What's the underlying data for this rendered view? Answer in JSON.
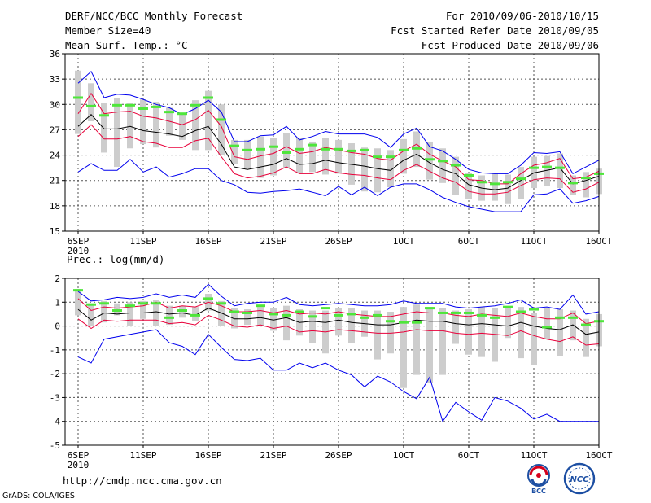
{
  "header": {
    "title": "DERF/NCC/BCC Monthly Forecast",
    "member_size": "Member Size=40",
    "variable": "Mean Surf. Temp.: °C",
    "period": "For 2010/09/06-2010/10/15",
    "refer_date": "Fcst Started Refer Date 2010/09/05",
    "produced_date": "Fcst Produced Date 2010/09/06"
  },
  "footer": {
    "url": "http://cmdp.ncc.cma.gov.cn",
    "grads": "GrADS: COLA/IGES",
    "logo_left_text": "BCC",
    "logo_right_text": "NCC"
  },
  "colors": {
    "envelope": "#0000ee",
    "spread": "#e8003a",
    "mean": "#000000",
    "bar": "#cdcdcd",
    "marker": "#4ee63a",
    "grid": "#555555"
  },
  "chart_data": [
    {
      "type": "line",
      "title": "",
      "ylabel": "Mean Surf. Temp.: °C",
      "ylim": [
        15,
        36
      ],
      "yticks": [
        "15",
        "18",
        "21",
        "24",
        "27",
        "30",
        "33",
        "36"
      ],
      "xticks": [
        {
          "day": 0,
          "label": "6SEP",
          "sublabel": "2010"
        },
        {
          "day": 5,
          "label": "11SEP"
        },
        {
          "day": 10,
          "label": "16SEP"
        },
        {
          "day": 15,
          "label": "21SEP"
        },
        {
          "day": 20,
          "label": "26SEP"
        },
        {
          "day": 25,
          "label": "1OCT"
        },
        {
          "day": 30,
          "label": "6OCT"
        },
        {
          "day": 35,
          "label": "11OCT"
        },
        {
          "day": 40,
          "label": "16OCT"
        }
      ],
      "xlim": [
        -1,
        40
      ],
      "series": [
        {
          "name": "max",
          "values": [
            32.5,
            33.9,
            30.8,
            31.2,
            31.1,
            30.6,
            30.0,
            29.6,
            28.8,
            29.5,
            30.5,
            29.1,
            25.6,
            25.6,
            26.3,
            26.4,
            27.4,
            25.8,
            26.2,
            26.8,
            26.5,
            26.5,
            26.5,
            26.1,
            24.9,
            26.5,
            27.2,
            25.0,
            24.5,
            23.5,
            22.3,
            21.9,
            21.8,
            21.8,
            22.8,
            24.3,
            24.2,
            24.4,
            21.8,
            22.6,
            23.4
          ]
        },
        {
          "name": "upper",
          "values": [
            28.9,
            31.3,
            28.9,
            29.1,
            29.2,
            28.6,
            28.4,
            28.0,
            27.6,
            28.2,
            29.3,
            27.4,
            23.8,
            23.5,
            23.9,
            24.2,
            25.0,
            24.2,
            24.4,
            24.9,
            24.6,
            24.3,
            24.1,
            23.6,
            23.4,
            24.5,
            25.3,
            24.1,
            23.3,
            22.6,
            21.1,
            21.0,
            20.6,
            20.6,
            21.8,
            22.8,
            23.1,
            23.6,
            21.2,
            21.4,
            22.1
          ]
        },
        {
          "name": "mean",
          "values": [
            27.4,
            28.8,
            27.1,
            27.1,
            27.4,
            26.9,
            26.7,
            26.5,
            26.2,
            26.9,
            27.4,
            25.3,
            22.6,
            22.3,
            22.6,
            22.9,
            23.6,
            22.9,
            23.0,
            23.4,
            23.1,
            22.9,
            22.7,
            22.4,
            22.2,
            23.4,
            24.1,
            23.1,
            22.3,
            21.8,
            20.5,
            20.1,
            19.9,
            20.1,
            21.0,
            21.9,
            22.2,
            22.5,
            20.6,
            21.0,
            21.5
          ]
        },
        {
          "name": "lower",
          "values": [
            26.2,
            27.6,
            25.9,
            25.9,
            26.2,
            25.6,
            25.4,
            24.9,
            24.9,
            25.7,
            26.0,
            23.8,
            21.8,
            21.3,
            21.5,
            21.9,
            22.6,
            21.8,
            21.8,
            22.3,
            21.9,
            21.7,
            21.6,
            21.3,
            21.1,
            22.2,
            22.9,
            22.1,
            21.3,
            20.8,
            19.7,
            19.4,
            19.4,
            19.6,
            20.4,
            21.1,
            21.3,
            21.2,
            19.6,
            20.0,
            20.8
          ]
        },
        {
          "name": "min",
          "values": [
            22.0,
            23.0,
            22.2,
            22.2,
            23.5,
            22.0,
            22.6,
            21.4,
            21.8,
            22.4,
            22.4,
            21.0,
            20.5,
            19.6,
            19.5,
            19.7,
            19.8,
            20.0,
            19.6,
            19.2,
            20.3,
            19.3,
            20.2,
            19.2,
            20.2,
            20.6,
            20.6,
            19.9,
            19.0,
            18.4,
            17.9,
            17.6,
            17.3,
            17.3,
            17.3,
            19.3,
            19.4,
            20.0,
            18.3,
            18.6,
            19.1
          ]
        },
        {
          "name": "bars_high",
          "values": [
            34.0,
            32.5,
            30.2,
            30.7,
            30.2,
            30.6,
            30.3,
            29.6,
            28.8,
            30.5,
            31.6,
            30.0,
            25.8,
            25.8,
            26.2,
            26.0,
            26.6,
            26.0,
            25.6,
            26.0,
            25.8,
            25.4,
            24.9,
            24.8,
            24.6,
            25.9,
            26.8,
            25.6,
            24.8,
            23.8,
            21.9,
            21.6,
            21.9,
            21.7,
            22.6,
            23.8,
            23.9,
            24.2,
            21.6,
            22.0,
            22.4
          ]
        },
        {
          "name": "bars_low",
          "values": [
            26.5,
            28.0,
            24.3,
            22.6,
            24.8,
            25.3,
            24.9,
            26.3,
            25.8,
            24.6,
            24.6,
            24.0,
            22.9,
            22.4,
            21.3,
            21.6,
            22.5,
            21.9,
            22.0,
            21.7,
            21.8,
            20.5,
            19.7,
            19.6,
            20.2,
            21.8,
            22.6,
            21.1,
            20.7,
            19.3,
            18.8,
            18.6,
            18.6,
            18.2,
            18.8,
            20.1,
            20.3,
            20.1,
            19.3,
            19.0,
            19.4
          ]
        },
        {
          "name": "markers",
          "values": [
            30.8,
            29.8,
            28.7,
            29.9,
            29.9,
            29.5,
            29.7,
            29.1,
            28.9,
            29.9,
            30.8,
            28.2,
            25.1,
            24.6,
            24.7,
            25.0,
            24.3,
            24.7,
            25.2,
            24.7,
            24.7,
            24.5,
            24.6,
            23.8,
            23.8,
            24.6,
            24.8,
            23.5,
            23.3,
            22.8,
            21.6,
            20.8,
            20.6,
            20.8,
            21.2,
            22.5,
            22.6,
            22.5,
            20.7,
            21.3,
            21.8
          ]
        }
      ]
    },
    {
      "type": "line",
      "title": "",
      "ylabel": "Prec.: log(mm/d)",
      "ylim": [
        -5,
        2
      ],
      "yticks": [
        "-5",
        "-4",
        "-3",
        "-2",
        "-1",
        "0",
        "1",
        "2"
      ],
      "xticks": [
        {
          "day": 0,
          "label": "6SEP",
          "sublabel": "2010"
        },
        {
          "day": 5,
          "label": "11SEP"
        },
        {
          "day": 10,
          "label": "16SEP"
        },
        {
          "day": 15,
          "label": "21SEP"
        },
        {
          "day": 20,
          "label": "26SEP"
        },
        {
          "day": 25,
          "label": "1OCT"
        },
        {
          "day": 30,
          "label": "6OCT"
        },
        {
          "day": 35,
          "label": "11OCT"
        },
        {
          "day": 40,
          "label": "16OCT"
        }
      ],
      "xlim": [
        -1,
        40
      ],
      "series": [
        {
          "name": "max",
          "values": [
            1.45,
            1.05,
            1.1,
            1.2,
            1.15,
            1.2,
            1.35,
            1.2,
            1.3,
            1.2,
            1.75,
            1.25,
            0.85,
            0.95,
            1.0,
            1.0,
            1.2,
            0.9,
            0.85,
            0.9,
            0.95,
            0.9,
            0.85,
            0.85,
            0.9,
            1.05,
            0.95,
            0.95,
            0.95,
            0.8,
            0.75,
            0.8,
            0.85,
            0.95,
            1.1,
            0.75,
            0.8,
            0.7,
            1.3,
            0.5,
            0.6
          ]
        },
        {
          "name": "upper",
          "values": [
            1.15,
            0.65,
            0.8,
            0.75,
            0.8,
            0.85,
            1.0,
            0.75,
            0.85,
            0.8,
            1.0,
            0.85,
            0.6,
            0.6,
            0.65,
            0.55,
            0.65,
            0.5,
            0.55,
            0.5,
            0.6,
            0.5,
            0.45,
            0.4,
            0.4,
            0.5,
            0.6,
            0.55,
            0.55,
            0.45,
            0.4,
            0.5,
            0.45,
            0.4,
            0.55,
            0.4,
            0.3,
            0.3,
            0.55,
            0.1,
            0.2
          ]
        },
        {
          "name": "mean",
          "values": [
            0.7,
            0.25,
            0.55,
            0.5,
            0.55,
            0.55,
            0.6,
            0.5,
            0.55,
            0.45,
            0.75,
            0.55,
            0.3,
            0.3,
            0.35,
            0.25,
            0.35,
            0.15,
            0.2,
            0.15,
            0.25,
            0.15,
            0.1,
            0.05,
            0.05,
            0.15,
            0.25,
            0.2,
            0.2,
            0.1,
            0.05,
            0.1,
            0.05,
            0.0,
            0.15,
            0.0,
            -0.1,
            -0.15,
            0.05,
            -0.35,
            -0.25
          ]
        },
        {
          "name": "lower",
          "values": [
            0.3,
            -0.1,
            0.25,
            0.2,
            0.25,
            0.25,
            0.25,
            0.1,
            0.15,
            0.05,
            0.45,
            0.25,
            0.0,
            -0.05,
            0.05,
            -0.1,
            0.0,
            -0.25,
            -0.2,
            -0.25,
            -0.15,
            -0.2,
            -0.25,
            -0.3,
            -0.3,
            -0.25,
            -0.15,
            -0.2,
            -0.2,
            -0.3,
            -0.35,
            -0.3,
            -0.35,
            -0.4,
            -0.2,
            -0.4,
            -0.55,
            -0.65,
            -0.45,
            -0.8,
            -0.75
          ]
        },
        {
          "name": "min",
          "values": [
            -1.3,
            -1.55,
            -0.55,
            -0.45,
            -0.35,
            -0.25,
            -0.15,
            -0.7,
            -0.85,
            -1.2,
            -0.35,
            -0.9,
            -1.4,
            -1.45,
            -1.35,
            -1.85,
            -1.85,
            -1.55,
            -1.75,
            -1.55,
            -1.85,
            -2.05,
            -2.55,
            -2.1,
            -2.35,
            -2.75,
            -3.05,
            -2.15,
            -4.0,
            -3.2,
            -3.6,
            -3.95,
            -3.0,
            -3.15,
            -3.45,
            -3.9,
            -3.7,
            -4.0,
            -4.0,
            -4.0,
            -4.0
          ]
        },
        {
          "name": "bars_high",
          "values": [
            1.55,
            0.95,
            1.05,
            0.95,
            1.0,
            1.05,
            1.1,
            0.85,
            0.85,
            0.8,
            1.35,
            1.05,
            0.75,
            0.7,
            0.8,
            0.75,
            0.85,
            0.7,
            0.65,
            0.65,
            0.75,
            0.75,
            0.65,
            0.65,
            0.6,
            0.8,
            0.9,
            0.8,
            0.75,
            0.65,
            0.7,
            0.8,
            0.75,
            0.75,
            0.8,
            0.55,
            0.75,
            0.7,
            0.65,
            0.3,
            0.5
          ]
        },
        {
          "name": "bars_low",
          "values": [
            0.45,
            0.0,
            0.15,
            0.45,
            0.0,
            0.3,
            0.0,
            0.05,
            0.35,
            0.2,
            0.65,
            0.0,
            -0.1,
            0.05,
            0.0,
            -0.2,
            -0.6,
            -0.4,
            -0.7,
            -1.15,
            -0.4,
            -0.7,
            -0.45,
            -1.4,
            -1.15,
            -2.6,
            -2.05,
            -2.4,
            -2.05,
            -0.75,
            -1.2,
            -1.3,
            -1.5,
            -0.5,
            -1.35,
            -1.65,
            -0.55,
            -1.25,
            -0.6,
            -1.3,
            -0.85
          ]
        },
        {
          "name": "markers",
          "values": [
            1.5,
            0.9,
            0.95,
            0.65,
            0.85,
            0.95,
            0.95,
            0.35,
            0.65,
            0.45,
            1.15,
            0.95,
            0.6,
            0.55,
            0.85,
            0.5,
            0.45,
            0.6,
            0.4,
            0.75,
            0.45,
            0.5,
            0.35,
            0.45,
            0.2,
            0.15,
            0.15,
            0.75,
            0.55,
            0.55,
            0.55,
            0.45,
            0.35,
            0.8,
            0.6,
            0.7,
            -0.05,
            0.35,
            0.35,
            0.05,
            0.2
          ]
        }
      ]
    }
  ]
}
